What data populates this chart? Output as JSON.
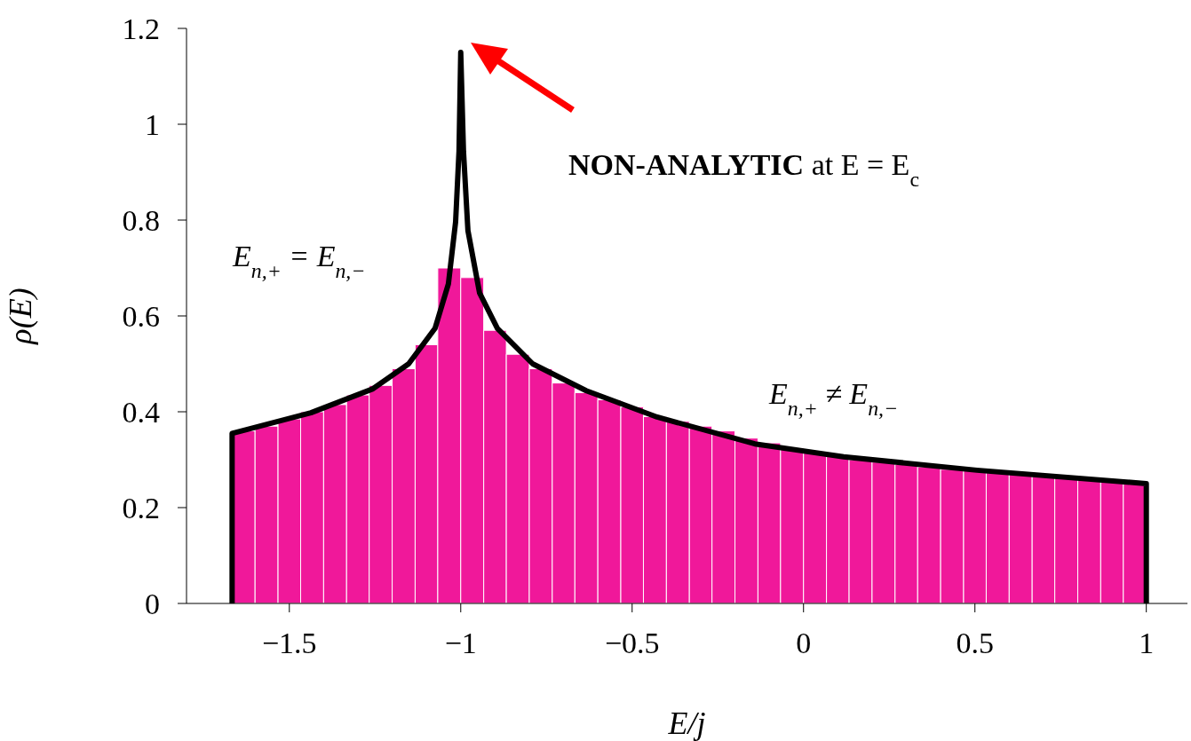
{
  "chart_data": {
    "type": "histogram",
    "xlabel": "E/j",
    "ylabel": "ρ(E)",
    "annotations": [
      "NON-ANALYTIC at E = E$_{c}$",
      "E$_{n,+}$ = E$_{n,−}$",
      "E$_{n,+}$ ≠ E$_{n,−}$"
    ],
    "xlim": [
      -1.8,
      1.12
    ],
    "xticks": [
      -1.5,
      -1,
      -0.5,
      0,
      0.5,
      1
    ],
    "ylim": [
      0,
      1.2
    ],
    "yticks": [
      0,
      0.2,
      0.4,
      0.6,
      0.8,
      1,
      1.2
    ],
    "series": [
      {
        "color": "#f0189a",
        "bins": [
          -1.667,
          -1.6,
          -1.533,
          -1.467,
          -1.4,
          -1.333,
          -1.267,
          -1.2,
          -1.133,
          -1.067,
          -1,
          -0.933,
          -0.867,
          -0.8,
          -0.733,
          -0.667,
          -0.6,
          -0.533,
          -0.467,
          -0.4,
          -0.333,
          -0.267,
          -0.2,
          -0.133,
          -0.067,
          0,
          0.067,
          0.133,
          0.2,
          0.267,
          0.333,
          0.4,
          0.467,
          0.533,
          0.6,
          0.667,
          0.733,
          0.8,
          0.867,
          0.933,
          1
        ],
        "values": [
          0.36,
          0.37,
          0.385,
          0.4,
          0.415,
          0.435,
          0.455,
          0.49,
          0.54,
          0.7,
          0.68,
          0.57,
          0.52,
          0.49,
          0.46,
          0.44,
          0.425,
          0.41,
          0.39,
          0.38,
          0.37,
          0.36,
          0.345,
          0.335,
          0.325,
          0.315,
          0.308,
          0.3,
          0.295,
          0.29,
          0.285,
          0.28,
          0.277,
          0.273,
          0.27,
          0.265,
          0.262,
          0.258,
          0.255,
          0.252
        ]
      },
      {
        "type": "line",
        "color": "#000000",
        "x": [
          -1.667,
          -1.667,
          -1.437,
          -1.256,
          -1.152,
          -1.075,
          -1.036,
          -1.015,
          -1.005,
          -1,
          -0.992,
          -0.979,
          -0.945,
          -0.893,
          -0.79,
          -0.634,
          -0.427,
          -0.142,
          0.117,
          0.506,
          1,
          1
        ],
        "values": [
          0,
          0.355,
          0.398,
          0.448,
          0.5,
          0.574,
          0.667,
          0.796,
          0.944,
          1.15,
          0.944,
          0.778,
          0.648,
          0.574,
          0.5,
          0.444,
          0.389,
          0.333,
          0.306,
          0.278,
          0.25,
          0
        ]
      }
    ]
  }
}
